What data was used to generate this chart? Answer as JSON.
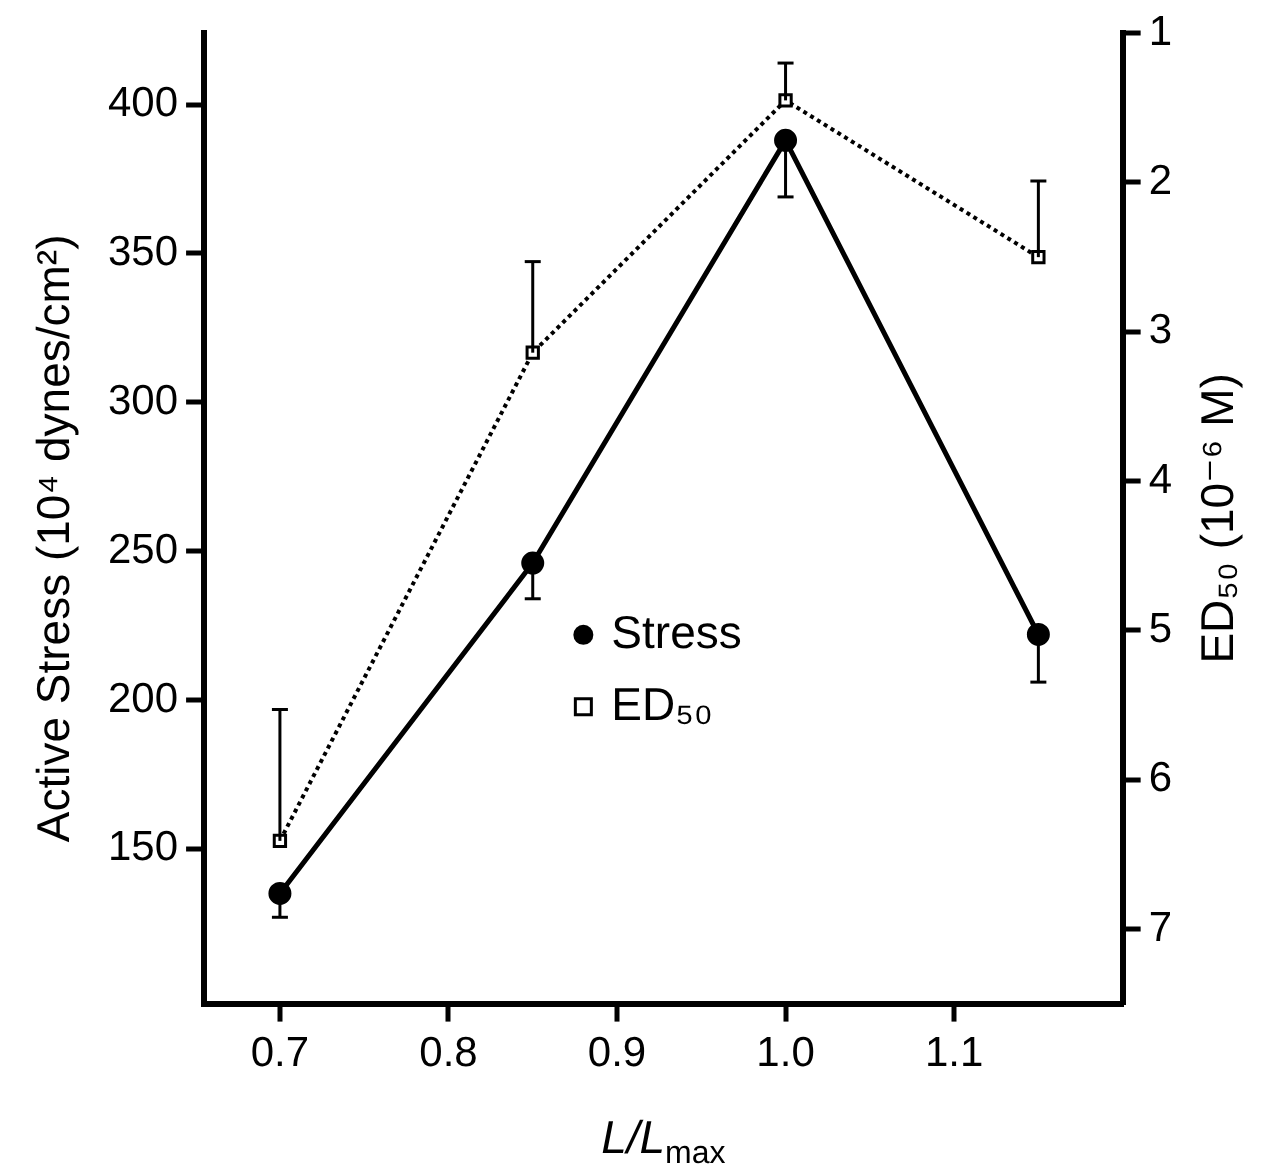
{
  "chart_data": {
    "type": "line",
    "xlabel": "L/L$_{max}$",
    "ylabel": "Active Stress (10⁴ dynes/cm²)",
    "y2label": "ED₅₀ (10⁻⁶ M)",
    "x": [
      0.7,
      0.85,
      1.0,
      1.15
    ],
    "series": [
      {
        "name": "Stress",
        "color": "#000000",
        "values": [
          135,
          246,
          388,
          222
        ],
        "marker": "circle",
        "line_style": "solid",
        "errors": [
          [
            127,
            135
          ],
          [
            234,
            246
          ],
          [
            369,
            388
          ],
          [
            206,
            222
          ]
        ]
      },
      {
        "name": "ED₅₀",
        "color": "#000000",
        "values": [
          6.41,
          3.14,
          1.45,
          2.5
        ],
        "marker": "square",
        "line_style": "dotted",
        "axis": "y2",
        "errors": [
          [
            5.53,
            6.41
          ],
          [
            2.53,
            3.14
          ],
          [
            1.2,
            1.45
          ],
          [
            1.99,
            2.5
          ]
        ]
      }
    ],
    "xlim": [
      0.655,
      1.2
    ],
    "xticks": [
      {
        "value": 0.7,
        "label": "0.7"
      },
      {
        "value": 0.8,
        "label": "0.8"
      },
      {
        "value": 0.9,
        "label": "0.9"
      },
      {
        "value": 1.0,
        "label": "1.0"
      },
      {
        "value": 1.1,
        "label": "1.1"
      }
    ],
    "ylim": [
      98,
      424
    ],
    "yticks": [
      150,
      200,
      250,
      300,
      350,
      400
    ],
    "y2lim": [
      7.5,
      1
    ],
    "y2ticks": [
      1,
      2,
      3,
      4,
      5,
      6,
      7
    ],
    "legend": "center",
    "grid": false
  }
}
